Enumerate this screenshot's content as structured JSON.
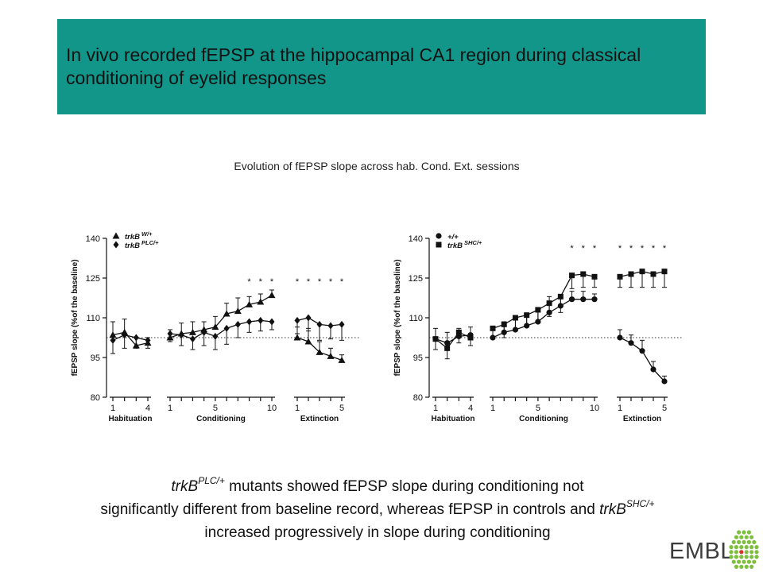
{
  "header": {
    "title": "In vivo recorded fEPSP at the hippocampal CA1 region during classical conditioning of eyelid responses",
    "color": "#12968a"
  },
  "subtitle": "Evolution of fEPSP slope across hab. Cond. Ext. sessions",
  "chart_data": [
    {
      "type": "line",
      "ylabel": "fEPSP slope (%of the baseline)",
      "ylim": [
        80,
        140
      ],
      "yticks": [
        "140",
        "125",
        "110",
        "95",
        "80"
      ],
      "baseline": 102.5,
      "groups": [
        {
          "label": "Habituation",
          "ticks": [
            "1",
            "4"
          ],
          "n": 4
        },
        {
          "label": "Conditioning",
          "ticks": [
            "1",
            "5",
            "10"
          ],
          "n": 10
        },
        {
          "label": "Extinction",
          "ticks": [
            "1",
            "5"
          ],
          "n": 5
        }
      ],
      "significance": {
        "Habituation": [
          0,
          0,
          0,
          0
        ],
        "Conditioning": [
          0,
          0,
          0,
          0,
          0,
          0,
          0,
          1,
          1,
          1
        ],
        "Extinction": [
          1,
          1,
          1,
          1,
          1
        ]
      },
      "legend_position": "top-left",
      "series": [
        {
          "name": "trkB",
          "sup": "W/+",
          "marker": "triangle",
          "Habituation": [
            103.5,
            104.5,
            99.5,
            100.5
          ],
          "Habituation_err": [
            5,
            5,
            3,
            2
          ],
          "Conditioning": [
            102.5,
            104,
            104.5,
            105.5,
            106.5,
            111.5,
            112.5,
            115,
            116,
            118.5
          ],
          "Conditioning_err": [
            3,
            4,
            4,
            3,
            4,
            4,
            5,
            3,
            3,
            2
          ],
          "Extinction": [
            102.5,
            101,
            97,
            95.5,
            94
          ],
          "Extinction_err": [
            4,
            5,
            4,
            3,
            2
          ]
        },
        {
          "name": "trkB",
          "sup": "PLC/+",
          "marker": "diamond",
          "Habituation": [
            101.5,
            103.5,
            102.5,
            101.5
          ],
          "Habituation_err": [
            5,
            5,
            4,
            3
          ],
          "Conditioning": [
            104,
            103.5,
            102,
            104.5,
            103,
            106,
            107.5,
            108.5,
            109,
            108.5
          ],
          "Conditioning_err": [
            3,
            4,
            4,
            5,
            5,
            6,
            5,
            4,
            4,
            3
          ],
          "Extinction": [
            109,
            110,
            107.5,
            107,
            107.5
          ],
          "Extinction_err": [
            5,
            5,
            6,
            5,
            6
          ]
        }
      ]
    },
    {
      "type": "line",
      "ylabel": "fEPSP slope (%of the baseline)",
      "ylim": [
        80,
        140
      ],
      "yticks": [
        "140",
        "125",
        "110",
        "95",
        "80"
      ],
      "baseline": 102.5,
      "groups": [
        {
          "label": "Habituation",
          "ticks": [
            "1",
            "4"
          ],
          "n": 4
        },
        {
          "label": "Conditioning",
          "ticks": [
            "1",
            "5",
            "10"
          ],
          "n": 10
        },
        {
          "label": "Extinction",
          "ticks": [
            "1",
            "5"
          ],
          "n": 5
        }
      ],
      "significance": {
        "Habituation": [
          0,
          0,
          0,
          0
        ],
        "Conditioning": [
          0,
          0,
          0,
          0,
          0,
          0,
          0,
          1,
          1,
          1
        ],
        "Extinction": [
          1,
          1,
          1,
          1,
          1
        ]
      },
      "legend_position": "top-left",
      "series": [
        {
          "name": "+/+",
          "sup": "",
          "marker": "circle",
          "Habituation": [
            102,
            100.5,
            103,
            103.5
          ],
          "Habituation_err": [
            4,
            4,
            3,
            3
          ],
          "Conditioning": [
            102.5,
            104.5,
            105.5,
            107,
            108.5,
            112,
            114.5,
            117,
            117,
            117
          ],
          "Conditioning_err": [
            4,
            4,
            4,
            4,
            5,
            6,
            4,
            3,
            3,
            2
          ],
          "Extinction": [
            102.5,
            100.5,
            97.5,
            90.5,
            86
          ],
          "Extinction_err": [
            3,
            3,
            4,
            3,
            2
          ]
        },
        {
          "name": "trkB",
          "sup": "SHC/+",
          "marker": "square",
          "Habituation": [
            102,
            98.5,
            104.5,
            102.5
          ],
          "Habituation_err": [
            4,
            4,
            4,
            3
          ],
          "Conditioning": [
            106,
            107.5,
            110,
            111,
            113,
            115.5,
            118,
            126,
            126.5,
            125.5
          ],
          "Conditioning_err": [
            4,
            5,
            5,
            4,
            4,
            5,
            6,
            5,
            5,
            4
          ],
          "Extinction": [
            125.5,
            126.5,
            127.5,
            126.5,
            127.5
          ],
          "Extinction_err": [
            4,
            5,
            6,
            5,
            6
          ]
        }
      ]
    }
  ],
  "caption": {
    "line1_gene": "trkB",
    "line1_sup": "PLC/+",
    "line1_text": " mutants showed fEPSP slope during conditioning not",
    "line2_text": "significantly different from baseline record, whereas fEPSP in controls and ",
    "line2_gene": "trkB",
    "line2_sup": "SHC/+",
    "line3_text": "increased progressively in slope during conditioning"
  },
  "logo": {
    "text": "EMBL",
    "dot_color": "#7fbf3f",
    "accent_color": "#d9302c"
  }
}
